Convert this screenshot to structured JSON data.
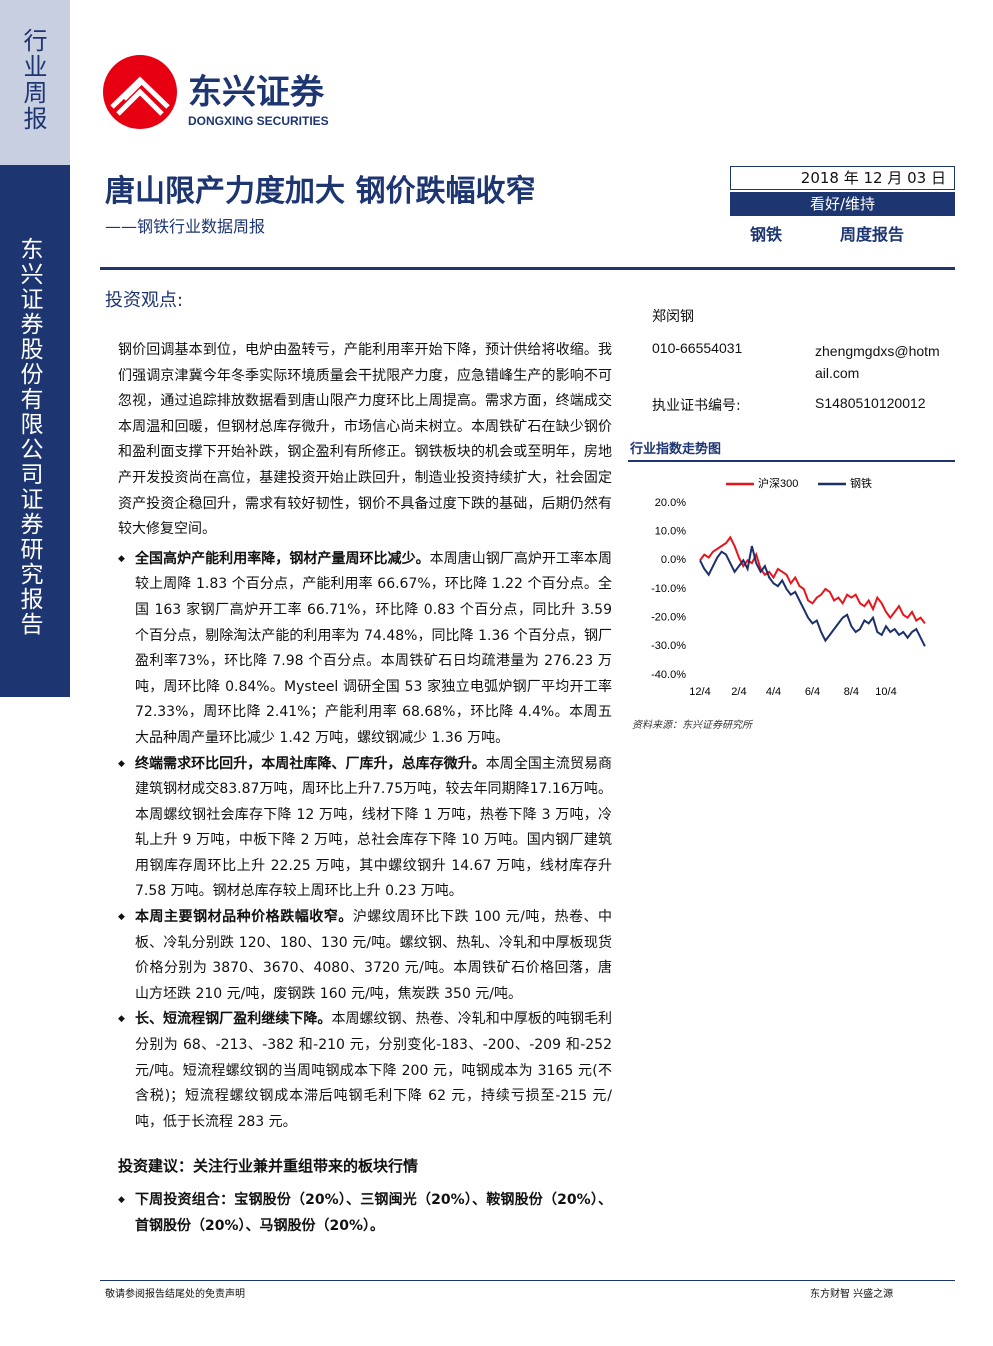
{
  "sidebar": {
    "tag": "行业周报",
    "company": "东兴证券股份有限公司证券研究报告"
  },
  "header": {
    "logo_cn": "东兴证券",
    "logo_en": "DONGXING SECURITIES",
    "title": "唐山限产力度加大 钢价跌幅收窄",
    "subtitle": "——钢铁行业数据周报",
    "date": "2018 年 12 月 03 日",
    "rating": "看好/维持",
    "industry": "钢铁",
    "report_type": "周度报告"
  },
  "viewpoint": {
    "heading": "投资观点:",
    "summary": "钢价回调基本到位，电炉由盈转亏，产能利用率开始下降，预计供给将收缩。我们强调京津冀今年冬季实际环境质量会干扰限产力度，应急错峰生产的影响不可忽视，通过追踪排放数据看到唐山限产力度环比上周提高。需求方面，终端成交本周温和回暖，但钢材总库存微升，市场信心尚未树立。本周铁矿石在缺少钢价和盈利面支撑下开始补跌，钢企盈利有所修正。钢铁板块的机会或至明年，房地产开发投资尚在高位，基建投资开始止跌回升，制造业投资持续扩大，社会固定资产投资企稳回升，需求有较好韧性，钢价不具备过度下跌的基础，后期仍然有较大修复空间。",
    "bullets": [
      {
        "lead": "全国高炉产能利用率降，钢材产量周环比减少。",
        "text": "本周唐山钢厂高炉开工率本周较上周降 1.83 个百分点，产能利用率 66.67%，环比降 1.22 个百分点。全国 163 家钢厂高炉开工率 66.71%，环比降 0.83 个百分点，同比升 3.59 个百分点，剔除淘汰产能的利用率为 74.48%，同比降 1.36 个百分点，钢厂盈利率73%，环比降 7.98 个百分点。本周铁矿石日均疏港量为 276.23 万吨，周环比降 0.84%。Mysteel 调研全国 53 家独立电弧炉钢厂平均开工率 72.33%，周环比降 2.41%；产能利用率 68.68%，环比降 4.4%。本周五大品种周产量环比减少 1.42 万吨，螺纹钢减少 1.36 万吨。"
      },
      {
        "lead": "终端需求环比回升，本周社库降、厂库升，总库存微升。",
        "text": "本周全国主流贸易商建筑钢材成交83.87万吨，周环比上升7.75万吨，较去年同期降17.16万吨。本周螺纹钢社会库存下降 12 万吨，线材下降 1 万吨，热卷下降 3 万吨，冷轧上升 9 万吨，中板下降 2 万吨，总社会库存下降 10 万吨。国内钢厂建筑用钢库存周环比上升 22.25 万吨，其中螺纹钢升 14.67 万吨，线材库存升 7.58 万吨。钢材总库存较上周环比上升 0.23 万吨。"
      },
      {
        "lead": "本周主要钢材品种价格跌幅收窄。",
        "text": "沪螺纹周环比下跌 100 元/吨，热卷、中板、冷轧分别跌 120、180、130 元/吨。螺纹钢、热轧、冷轧和中厚板现货价格分别为 3870、3670、4080、3720 元/吨。本周铁矿石价格回落，唐山方坯跌 210 元/吨，废钢跌 160 元/吨，焦炭跌 350 元/吨。"
      },
      {
        "lead": "长、短流程钢厂盈利继续下降。",
        "text": "本周螺纹钢、热卷、冷轧和中厚板的吨钢毛利分别为 68、-213、-382 和-210 元，分别变化-183、-200、-209 和-252 元/吨。短流程螺纹钢的当周吨钢成本下降 200 元，吨钢成本为 3165 元(不含税)；短流程螺纹钢成本滞后吨钢毛利下降 62 元，持续亏损至-215 元/吨，低于长流程 283 元。"
      }
    ]
  },
  "recommendation": {
    "heading": "投资建议：关注行业兼并重组带来的板块行情",
    "bullets": [
      "下周投资组合：宝钢股份（20%）、三钢闽光（20%）、鞍钢股份（20%）、首钢股份（20%）、马钢股份（20%）。"
    ]
  },
  "analyst": {
    "name": "郑闵钢",
    "phone": "010-66554031",
    "email": "zhengmgdxs@hotmail.com",
    "cert_label": "执业证书编号:",
    "cert": "S1480510120012"
  },
  "chart_data": {
    "type": "line",
    "title": "行业指数走势图",
    "source": "资料来源：东兴证券研究所",
    "categories": [
      "12/4",
      null,
      null,
      null,
      null,
      null,
      null,
      null,
      null,
      "2/4",
      null,
      null,
      null,
      null,
      null,
      null,
      null,
      "4/4",
      null,
      null,
      null,
      null,
      null,
      null,
      null,
      null,
      "6/4",
      null,
      null,
      null,
      null,
      null,
      null,
      null,
      null,
      "8/4",
      null,
      null,
      null,
      null,
      null,
      null,
      null,
      "10/4",
      null,
      null,
      null,
      null,
      null,
      null,
      null,
      null,
      null
    ],
    "series": [
      {
        "name": "沪深300",
        "color": "#e8141c",
        "values": [
          0,
          2,
          1,
          3,
          4,
          5,
          6,
          8,
          5,
          1,
          -2,
          0,
          -1,
          2,
          -3,
          -5,
          -4,
          -6,
          -3,
          -4,
          -5,
          -8,
          -6,
          -9,
          -10,
          -14,
          -15,
          -13,
          -12,
          -10,
          -11,
          -14,
          -13,
          -15,
          -12,
          -13,
          -12,
          -15,
          -16,
          -14,
          -17,
          -13,
          -15,
          -18,
          -20,
          -18,
          -16,
          -19,
          -20,
          -18,
          -21,
          -20,
          -22
        ]
      },
      {
        "name": "钢铁",
        "color": "#1c2f6b",
        "values": [
          0,
          -3,
          -5,
          -2,
          1,
          3,
          2,
          -1,
          -4,
          -2,
          0,
          -3,
          5,
          -1,
          -4,
          -2,
          -6,
          -8,
          -9,
          -7,
          -10,
          -12,
          -11,
          -14,
          -17,
          -20,
          -22,
          -21,
          -25,
          -28,
          -26,
          -24,
          -22,
          -20,
          -19,
          -23,
          -25,
          -24,
          -21,
          -22,
          -20,
          -25,
          -26,
          -23,
          -25,
          -24,
          -26,
          -25,
          -27,
          -25,
          -24,
          -27,
          -30
        ]
      }
    ],
    "ylim": [
      -40,
      20
    ],
    "yticks": [
      {
        "value": 20,
        "label": "20.0%"
      },
      {
        "value": 10,
        "label": "10.0%"
      },
      {
        "value": 0,
        "label": "0.0%"
      },
      {
        "value": -10,
        "label": "-10.0%"
      },
      {
        "value": -20,
        "label": "-20.0%"
      },
      {
        "value": -30,
        "label": "-30.0%"
      },
      {
        "value": -40,
        "label": "-40.0%"
      }
    ],
    "grid": false
  },
  "footer": {
    "disclaimer": "敬请参阅报告结尾处的免责声明",
    "slogan": "东方财智 兴盛之源"
  }
}
